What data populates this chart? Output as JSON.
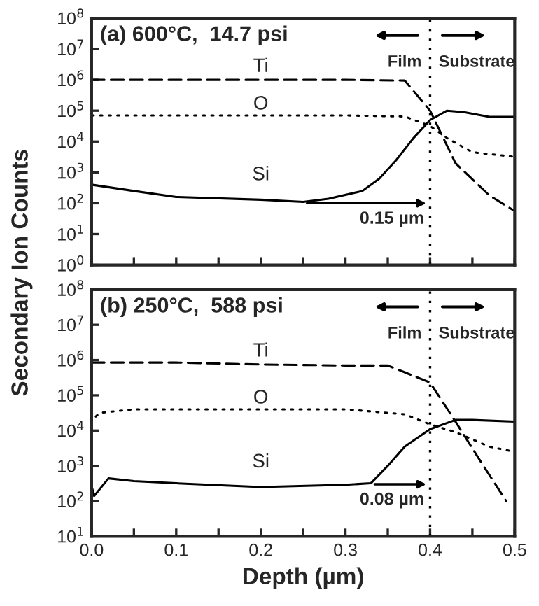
{
  "chart_data": [
    {
      "type": "line",
      "title": "(a) 600°C,  14.7 psi",
      "ylabel": "Secondary Ion Counts",
      "log": "y",
      "xlim": [
        0,
        0.5
      ],
      "ylim": [
        1,
        100000000
      ],
      "xticks": [
        {
          "value": 0,
          "label": null
        },
        {
          "value": 0.05,
          "label": null
        },
        {
          "value": 0.1,
          "label": null
        },
        {
          "value": 0.15,
          "label": null
        },
        {
          "value": 0.2,
          "label": null
        },
        {
          "value": 0.25,
          "label": null
        },
        {
          "value": 0.3,
          "label": null
        },
        {
          "value": 0.35,
          "label": null
        },
        {
          "value": 0.4,
          "label": null
        },
        {
          "value": 0.45,
          "label": null
        },
        {
          "value": 0.5,
          "label": null
        }
      ],
      "yticks": [
        {
          "value": 1,
          "label": "10$^{0}$"
        },
        {
          "value": 10,
          "label": "10$^{1}$"
        },
        {
          "value": 100,
          "label": "10$^{2}$"
        },
        {
          "value": 1000,
          "label": "10$^{3}$"
        },
        {
          "value": 10000,
          "label": "10$^{4}$"
        },
        {
          "value": 100000,
          "label": "10$^{5}$"
        },
        {
          "value": 1000000,
          "label": "10$^{6}$"
        },
        {
          "value": 10000000,
          "label": "10$^{7}$"
        },
        {
          "value": 100000000,
          "label": "10$^{8}$"
        }
      ],
      "tick_labels": "y",
      "grid": false,
      "series": [
        {
          "name": "Ti",
          "color": "#000000",
          "line_style": "dashed",
          "x": [
            0,
            0.1,
            0.2,
            0.3,
            0.37,
            0.4,
            0.43,
            0.47,
            0.5
          ],
          "values": [
            1000000,
            1000000,
            1000000,
            1000000,
            950000,
            100000,
            2000,
            180,
            56
          ]
        },
        {
          "name": "O",
          "color": "#000000",
          "line_style": "dotted",
          "x": [
            0,
            0.1,
            0.2,
            0.3,
            0.37,
            0.4,
            0.42,
            0.45,
            0.5
          ],
          "values": [
            70000,
            70000,
            70000,
            70000,
            65000,
            32000,
            13000,
            4500,
            3200
          ]
        },
        {
          "name": "Si",
          "color": "#000000",
          "line_style": "solid",
          "x": [
            0,
            0.05,
            0.1,
            0.2,
            0.25,
            0.28,
            0.32,
            0.34,
            0.36,
            0.38,
            0.4,
            0.42,
            0.44,
            0.47,
            0.5
          ],
          "values": [
            400,
            250,
            160,
            130,
            110,
            140,
            250,
            630,
            2500,
            12600,
            50000,
            100000,
            90000,
            63000,
            63000
          ]
        }
      ],
      "ref_lines": [
        {
          "axis": "x",
          "value": 0.4,
          "line_style": "dotted",
          "color": "#000000"
        }
      ],
      "annotations": [
        "Film",
        "Substrate",
        {
          "text": "0.15 µm",
          "x": 0.25,
          "y": 100
        }
      ]
    },
    {
      "type": "line",
      "title": "(b) 250°C,  588 psi",
      "xlabel": "Depth (µm)",
      "log": "y",
      "xlim": [
        0,
        0.5
      ],
      "ylim": [
        10,
        100000000
      ],
      "xticks": [
        {
          "value": 0,
          "label": "0.0"
        },
        {
          "value": 0.05,
          "label": null
        },
        {
          "value": 0.1,
          "label": "0.1"
        },
        {
          "value": 0.15,
          "label": null
        },
        {
          "value": 0.2,
          "label": "0.2"
        },
        {
          "value": 0.25,
          "label": null
        },
        {
          "value": 0.3,
          "label": "0.3"
        },
        {
          "value": 0.35,
          "label": null
        },
        {
          "value": 0.4,
          "label": "0.4"
        },
        {
          "value": 0.45,
          "label": null
        },
        {
          "value": 0.5,
          "label": "0.5"
        }
      ],
      "yticks": [
        {
          "value": 10,
          "label": "10$^{1}$"
        },
        {
          "value": 100,
          "label": "10$^{2}$"
        },
        {
          "value": 1000,
          "label": "10$^{3}$"
        },
        {
          "value": 10000,
          "label": "10$^{4}$"
        },
        {
          "value": 100000,
          "label": "10$^{5}$"
        },
        {
          "value": 1000000,
          "label": "10$^{6}$"
        },
        {
          "value": 10000000,
          "label": "10$^{7}$"
        },
        {
          "value": 100000000,
          "label": "10$^{8}$"
        }
      ],
      "grid": false,
      "series": [
        {
          "name": "Ti",
          "color": "#000000",
          "line_style": "dashed",
          "x": [
            0,
            0.1,
            0.2,
            0.3,
            0.35,
            0.37,
            0.4,
            0.43,
            0.46,
            0.49
          ],
          "values": [
            850000,
            850000,
            750000,
            700000,
            700000,
            450000,
            230000,
            18000,
            1300,
            100
          ]
        },
        {
          "name": "O",
          "color": "#000000",
          "line_style": "dotted",
          "x": [
            0.005,
            0.01,
            0.05,
            0.1,
            0.2,
            0.3,
            0.37,
            0.4,
            0.43,
            0.47,
            0.5
          ],
          "values": [
            25000,
            32000,
            40000,
            40000,
            40000,
            40000,
            29000,
            15000,
            9000,
            3500,
            2500
          ]
        },
        {
          "name": "Si",
          "color": "#000000",
          "line_style": "solid",
          "x": [
            0,
            0.003,
            0.02,
            0.05,
            0.1,
            0.2,
            0.3,
            0.33,
            0.35,
            0.37,
            0.4,
            0.43,
            0.45,
            0.5
          ],
          "values": [
            270,
            140,
            440,
            370,
            320,
            250,
            290,
            320,
            1000,
            3500,
            11000,
            20000,
            20000,
            18000
          ]
        }
      ],
      "ref_lines": [
        {
          "axis": "x",
          "value": 0.4,
          "line_style": "dotted",
          "color": "#000000"
        }
      ],
      "annotations": [
        "Film",
        "Substrate",
        {
          "text": "0.08 µm",
          "x": 0.33,
          "y": 300
        }
      ]
    }
  ]
}
